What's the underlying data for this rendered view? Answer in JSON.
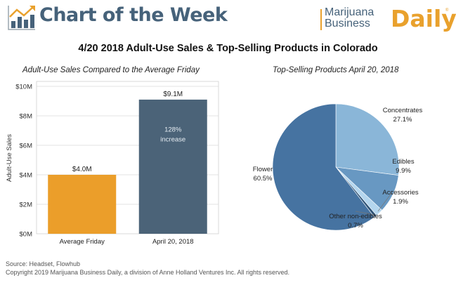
{
  "header": {
    "title": "Chart of the Week",
    "logo": {
      "line1": "Marijuana",
      "line2": "Business",
      "accent": "Daily",
      "registered": "®"
    }
  },
  "main_title": "4/20 2018 Adult-Use Sales & Top-Selling Products in Colorado",
  "colors": {
    "brand_blue": "#46627a",
    "brand_orange": "#e9a12d"
  },
  "chart_data": [
    {
      "type": "bar",
      "title": "Adult-Use Sales Compared to the Average Friday",
      "xlabel": "",
      "ylabel": "Adult-Use Sales",
      "categories": [
        "Average Friday",
        "April 20, 2018"
      ],
      "values": [
        4.0,
        9.1
      ],
      "units": "$M",
      "data_labels": [
        "$4.0M",
        "$9.1M"
      ],
      "bar_colors": [
        "#eb9e2a",
        "#4b6378"
      ],
      "annotation": {
        "line1": "128%",
        "line2": "increase",
        "bar": "April 20, 2018"
      },
      "ylim": [
        0,
        10
      ],
      "yticks": [
        0,
        2,
        4,
        6,
        8,
        10
      ],
      "ytick_labels": [
        "$0M",
        "$2M",
        "$4M",
        "$6M",
        "$8M",
        "$10M"
      ],
      "grid": true,
      "legend": "none"
    },
    {
      "type": "pie",
      "title": "Top-Selling Products April 20, 2018",
      "slices": [
        {
          "label": "Concentrates",
          "value": 27.1,
          "display": "27.1%",
          "color": "#8ab6d8"
        },
        {
          "label": "Edibles",
          "value": 9.9,
          "display": "9.9%",
          "color": "#6898c2"
        },
        {
          "label": "Accessories",
          "value": 1.9,
          "display": "1.9%",
          "color": "#b4d6ee"
        },
        {
          "label": "Other non-edibles",
          "value": 0.7,
          "display": "0.7%",
          "color": "#2f5478"
        },
        {
          "label": "Flower",
          "value": 60.5,
          "display": "60.5%",
          "color": "#4673a1"
        }
      ],
      "start": "top",
      "direction": "clockwise",
      "legend": "none"
    }
  ],
  "footer": {
    "source": "Source: Headset, Flowhub",
    "copyright": "Copyright 2019 Marijuana Business Daily, a division of Anne Holland Ventures Inc. All rights reserved."
  }
}
